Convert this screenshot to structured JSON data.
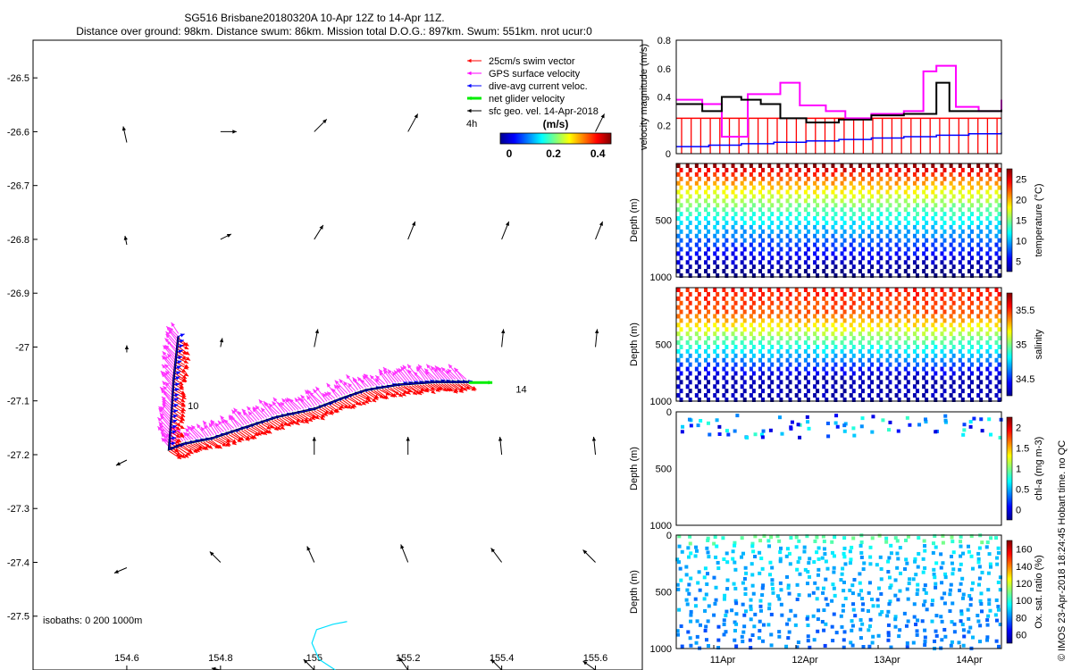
{
  "title": {
    "line1": "SG516 Brisbane20180320A 10-Apr 12Z to 14-Apr 11Z.",
    "line2": "Distance over ground: 98km. Distance swum: 86km. Mission total D.O.G.: 897km. Swum: 551km. nrot ucur:0"
  },
  "side_label": "© IMOS 23-Apr-2018 18:24:45 Hobart time. no QC",
  "chart_data": [
    {
      "type": "map",
      "xlim": [
        154.4,
        155.7
      ],
      "ylim": [
        -27.6,
        -26.43
      ],
      "x_ticks": [
        "154.6",
        "154.8",
        "155",
        "155.2",
        "155.4",
        "155.6"
      ],
      "y_ticks": [
        "-26.5",
        "-26.6",
        "-26.7",
        "-26.8",
        "-26.9",
        "-27",
        "-27.1",
        "-27.2",
        "-27.3",
        "-27.4",
        "-27.5"
      ],
      "legend": [
        {
          "label": "25cm/s swim vector",
          "color": "#ff0000"
        },
        {
          "label": "GPS surface velocity",
          "color": "#ff00ff"
        },
        {
          "label": "dive-avg current veloc.",
          "color": "#0000ff"
        },
        {
          "label": "net glider velocity",
          "color": "#00ee00"
        },
        {
          "label": "sfc geo. vel. 14-Apr-2018",
          "color": "#000000"
        }
      ],
      "scale_label": "4h",
      "colorbar": {
        "unit": "(m/s)",
        "ticks": [
          "0",
          "0.2",
          "0.4"
        ],
        "range": [
          0,
          0.5
        ]
      },
      "annotations": [
        {
          "text": "10",
          "lon": 154.73,
          "lat": -27.115
        },
        {
          "text": "14",
          "lon": 155.43,
          "lat": -27.085
        }
      ],
      "isobaths_label": "isobaths: 0   200  1000m",
      "track": [
        [
          154.71,
          -26.98
        ],
        [
          154.7,
          -27.06
        ],
        [
          154.695,
          -27.13
        ],
        [
          154.69,
          -27.19
        ],
        [
          154.72,
          -27.18
        ],
        [
          154.78,
          -27.17
        ],
        [
          154.85,
          -27.15
        ],
        [
          154.92,
          -27.13
        ],
        [
          155.0,
          -27.115
        ],
        [
          155.06,
          -27.095
        ],
        [
          155.11,
          -27.08
        ],
        [
          155.18,
          -27.07
        ],
        [
          155.26,
          -27.065
        ],
        [
          155.33,
          -27.065
        ]
      ],
      "net_velocity": {
        "from": [
          155.33,
          -27.066
        ],
        "to": [
          155.38,
          -27.066
        ]
      },
      "isobath": [
        [
          155.07,
          -27.51
        ],
        [
          155.04,
          -27.515
        ],
        [
          155.005,
          -27.525
        ],
        [
          154.995,
          -27.55
        ],
        [
          155.01,
          -27.58
        ],
        [
          155.045,
          -27.6
        ]
      ],
      "sfc_vectors": [
        {
          "lon": 154.6,
          "lat": -26.62,
          "u": -0.2,
          "v": 0.9
        },
        {
          "lon": 154.8,
          "lat": -26.6,
          "u": 0.9,
          "v": 0.0
        },
        {
          "lon": 155.0,
          "lat": -26.6,
          "u": 0.7,
          "v": 0.7
        },
        {
          "lon": 155.2,
          "lat": -26.6,
          "u": 0.55,
          "v": 1.0
        },
        {
          "lon": 155.6,
          "lat": -26.6,
          "u": 0.5,
          "v": 1.0
        },
        {
          "lon": 154.6,
          "lat": -26.81,
          "u": -0.1,
          "v": 0.5
        },
        {
          "lon": 154.8,
          "lat": -26.8,
          "u": 0.6,
          "v": 0.3
        },
        {
          "lon": 155.0,
          "lat": -26.8,
          "u": 0.5,
          "v": 0.8
        },
        {
          "lon": 155.2,
          "lat": -26.8,
          "u": 0.4,
          "v": 1.0
        },
        {
          "lon": 155.4,
          "lat": -26.8,
          "u": 0.4,
          "v": 1.0
        },
        {
          "lon": 155.6,
          "lat": -26.8,
          "u": 0.4,
          "v": 1.0
        },
        {
          "lon": 154.6,
          "lat": -27.01,
          "u": 0.0,
          "v": 0.4
        },
        {
          "lon": 154.8,
          "lat": -27.0,
          "u": 0.1,
          "v": 0.5
        },
        {
          "lon": 155.0,
          "lat": -27.0,
          "u": 0.2,
          "v": 1.0
        },
        {
          "lon": 155.4,
          "lat": -27.0,
          "u": 0.1,
          "v": 1.0
        },
        {
          "lon": 155.6,
          "lat": -27.0,
          "u": 0.1,
          "v": 1.0
        },
        {
          "lon": 154.6,
          "lat": -27.21,
          "u": -0.6,
          "v": -0.3
        },
        {
          "lon": 155.0,
          "lat": -27.2,
          "u": 0.0,
          "v": 1.0
        },
        {
          "lon": 155.2,
          "lat": -27.2,
          "u": 0.0,
          "v": 1.0
        },
        {
          "lon": 155.4,
          "lat": -27.2,
          "u": -0.1,
          "v": 1.0
        },
        {
          "lon": 155.6,
          "lat": -27.2,
          "u": -0.1,
          "v": 1.0
        },
        {
          "lon": 154.6,
          "lat": -27.41,
          "u": -0.7,
          "v": -0.3
        },
        {
          "lon": 154.8,
          "lat": -27.4,
          "u": -0.6,
          "v": 0.6
        },
        {
          "lon": 155.0,
          "lat": -27.4,
          "u": -0.4,
          "v": 0.9
        },
        {
          "lon": 155.2,
          "lat": -27.4,
          "u": -0.4,
          "v": 1.0
        },
        {
          "lon": 155.4,
          "lat": -27.4,
          "u": -0.6,
          "v": 0.8
        },
        {
          "lon": 155.6,
          "lat": -27.4,
          "u": -0.7,
          "v": 0.7
        },
        {
          "lon": 154.8,
          "lat": -27.6,
          "u": -0.5,
          "v": 0.1
        },
        {
          "lon": 155.0,
          "lat": -27.6,
          "u": -0.6,
          "v": 0.6
        },
        {
          "lon": 155.2,
          "lat": -27.6,
          "u": -0.5,
          "v": 0.7
        },
        {
          "lon": 155.4,
          "lat": -27.6,
          "u": -0.6,
          "v": 0.6
        },
        {
          "lon": 155.6,
          "lat": -27.6,
          "u": -0.7,
          "v": 0.5
        }
      ]
    },
    {
      "type": "line",
      "ylabel": "velocity magnitude (m/s)",
      "ylim": [
        0,
        0.8
      ],
      "y_ticks": [
        "0",
        "0.2",
        "0.4",
        "0.6",
        "0.8"
      ],
      "series": [
        {
          "color": "#ff00ff",
          "points": [
            [
              0,
              0.38
            ],
            [
              0.08,
              0.35
            ],
            [
              0.14,
              0.12
            ],
            [
              0.22,
              0.42
            ],
            [
              0.32,
              0.5
            ],
            [
              0.38,
              0.34
            ],
            [
              0.46,
              0.3
            ],
            [
              0.52,
              0.25
            ],
            [
              0.6,
              0.28
            ],
            [
              0.7,
              0.3
            ],
            [
              0.76,
              0.58
            ],
            [
              0.8,
              0.62
            ],
            [
              0.86,
              0.33
            ],
            [
              0.93,
              0.3
            ],
            [
              1.0,
              0.38
            ]
          ]
        },
        {
          "color": "#000000",
          "points": [
            [
              0,
              0.35
            ],
            [
              0.08,
              0.3
            ],
            [
              0.14,
              0.4
            ],
            [
              0.2,
              0.38
            ],
            [
              0.26,
              0.35
            ],
            [
              0.32,
              0.25
            ],
            [
              0.4,
              0.22
            ],
            [
              0.5,
              0.24
            ],
            [
              0.6,
              0.27
            ],
            [
              0.7,
              0.28
            ],
            [
              0.78,
              0.28
            ],
            [
              0.8,
              0.5
            ],
            [
              0.84,
              0.3
            ],
            [
              0.92,
              0.3
            ],
            [
              1.0,
              0.31
            ]
          ]
        },
        {
          "color": "#0000ff",
          "points": [
            [
              0,
              0.05
            ],
            [
              0.1,
              0.06
            ],
            [
              0.2,
              0.07
            ],
            [
              0.3,
              0.08
            ],
            [
              0.4,
              0.09
            ],
            [
              0.5,
              0.1
            ],
            [
              0.6,
              0.11
            ],
            [
              0.7,
              0.12
            ],
            [
              0.8,
              0.13
            ],
            [
              0.9,
              0.14
            ],
            [
              1.0,
              0.15
            ]
          ]
        }
      ],
      "swim_level": 0.25
    },
    {
      "type": "scatter",
      "ylabel": "Depth (m)",
      "y_ticks": [
        "500",
        "1000"
      ],
      "colorbar_label": "temperature (°C)",
      "colorbar_ticks": [
        "5",
        "10",
        "15",
        "20",
        "25"
      ],
      "colormap": "jet",
      "profile": "temperature"
    },
    {
      "type": "scatter",
      "ylabel": "Depth (m)",
      "y_ticks": [
        "500",
        "1000"
      ],
      "colorbar_label": "salinity",
      "colorbar_ticks": [
        "34.5",
        "35",
        "35.5"
      ],
      "colormap": "jet",
      "profile": "salinity"
    },
    {
      "type": "scatter",
      "ylabel": "Depth (m)",
      "y_ticks": [
        "0",
        "500",
        "1000"
      ],
      "colorbar_label": "chl-a (mg m-3)",
      "colorbar_ticks": [
        "0",
        "0.5",
        "1",
        "1.5",
        "2"
      ],
      "colormap": "jet",
      "profile": "chla"
    },
    {
      "type": "scatter",
      "ylabel": "Depth (m)",
      "y_ticks": [
        "0",
        "500",
        "1000"
      ],
      "x_ticks": [
        "11Apr",
        "12Apr",
        "13Apr",
        "14Apr"
      ],
      "colorbar_label": "Ox. sat. ratio (%)",
      "colorbar_ticks": [
        "60",
        "80",
        "100",
        "120",
        "140",
        "160"
      ],
      "colormap": "jet",
      "profile": "oxygen"
    }
  ]
}
